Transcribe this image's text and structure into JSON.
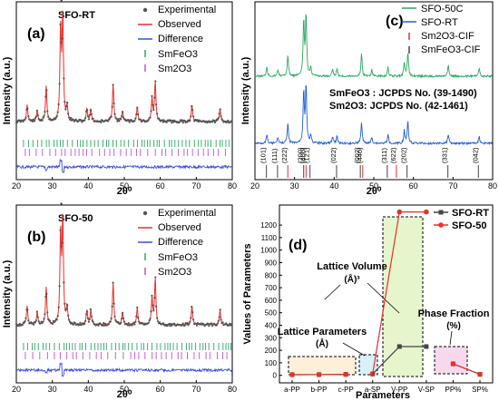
{
  "chart_data": [
    {
      "panel": "(a)",
      "type": "scatter",
      "sample": "SFO-RT",
      "xlabel": "2θ⁰",
      "ylabel": "Intensity (a.u.)",
      "xlim": [
        20,
        80
      ],
      "xticks": [
        20,
        30,
        40,
        50,
        60,
        70,
        80
      ],
      "legend": [
        "Experimental",
        "Observed",
        "Difference",
        "SmFeO3",
        "Sm2O3"
      ],
      "legend_placement": "top-right",
      "peaks": [
        {
          "x": 23.0,
          "h": 0.16
        },
        {
          "x": 25.8,
          "h": 0.1
        },
        {
          "x": 28.3,
          "h": 0.34
        },
        {
          "x": 32.3,
          "h": 0.88
        },
        {
          "x": 32.9,
          "h": 1.0
        },
        {
          "x": 34.1,
          "h": 0.14
        },
        {
          "x": 39.6,
          "h": 0.12
        },
        {
          "x": 40.7,
          "h": 0.12
        },
        {
          "x": 46.9,
          "h": 0.36
        },
        {
          "x": 49.5,
          "h": 0.1
        },
        {
          "x": 53.6,
          "h": 0.14
        },
        {
          "x": 57.7,
          "h": 0.22
        },
        {
          "x": 58.6,
          "h": 0.38
        },
        {
          "x": 68.8,
          "h": 0.16
        },
        {
          "x": 76.6,
          "h": 0.12
        }
      ]
    },
    {
      "panel": "(b)",
      "type": "scatter",
      "sample": "SFO-50",
      "xlabel": "2θ⁰",
      "ylabel": "Intensity (a.u.)",
      "xlim": [
        20,
        80
      ],
      "xticks": [
        20,
        30,
        40,
        50,
        60,
        70,
        80
      ],
      "legend": [
        "Experimental",
        "Observed",
        "Difference",
        "SmFeO3",
        "Sm2O3"
      ],
      "legend_placement": "top-right",
      "peaks": [
        {
          "x": 23.0,
          "h": 0.18
        },
        {
          "x": 25.8,
          "h": 0.12
        },
        {
          "x": 28.3,
          "h": 0.36
        },
        {
          "x": 32.3,
          "h": 0.86
        },
        {
          "x": 32.9,
          "h": 1.0
        },
        {
          "x": 34.1,
          "h": 0.16
        },
        {
          "x": 39.6,
          "h": 0.14
        },
        {
          "x": 40.7,
          "h": 0.14
        },
        {
          "x": 46.9,
          "h": 0.4
        },
        {
          "x": 49.5,
          "h": 0.12
        },
        {
          "x": 53.6,
          "h": 0.16
        },
        {
          "x": 57.7,
          "h": 0.26
        },
        {
          "x": 58.6,
          "h": 0.44
        },
        {
          "x": 68.8,
          "h": 0.18
        },
        {
          "x": 76.6,
          "h": 0.14
        }
      ]
    },
    {
      "panel": "(c)",
      "type": "line",
      "xlabel": "2θ⁰",
      "ylabel": "Intensity (a.u.)",
      "xlim": [
        20,
        80
      ],
      "xticks": [
        20,
        30,
        40,
        50,
        60,
        70,
        80
      ],
      "legend": [
        "SFO-50C",
        "SFO-RT",
        "Sm2O3-CIF",
        "SmFeO3-CIF"
      ],
      "legend_placement": "top-right",
      "annotation_lines": [
        "SmFeO3 : JCPDS No. (39-1490)",
        "Sm2O3: JCPDS No. (42-1461)"
      ],
      "series": [
        {
          "name": "SFO-50C",
          "color": "#2ca860"
        },
        {
          "name": "SFO-RT",
          "color": "#1f5fd6"
        }
      ],
      "cif_lines": [
        {
          "label": "(101)",
          "x": 22.9,
          "phase": "SmFeO3"
        },
        {
          "label": "(111)",
          "x": 25.7,
          "phase": "SmFeO3"
        },
        {
          "label": "(222)",
          "x": 28.3,
          "phase": "Sm2O3"
        },
        {
          "label": "(200)",
          "x": 32.3,
          "phase": "SmFeO3"
        },
        {
          "label": "(400)",
          "x": 32.9,
          "phase": "Sm2O3"
        },
        {
          "label": "(121)",
          "x": 33.9,
          "phase": "SmFeO3"
        },
        {
          "label": "(022)",
          "x": 40.6,
          "phase": "SmFeO3"
        },
        {
          "label": "(002)",
          "x": 46.6,
          "phase": "SmFeO3"
        },
        {
          "label": "(440)",
          "x": 47.2,
          "phase": "Sm2O3"
        },
        {
          "label": "(311)",
          "x": 53.4,
          "phase": "SmFeO3"
        },
        {
          "label": "(622)",
          "x": 55.7,
          "phase": "Sm2O3"
        },
        {
          "label": "(202)",
          "x": 58.4,
          "phase": "SmFeO3"
        },
        {
          "label": "(331)",
          "x": 68.7,
          "phase": "SmFeO3"
        },
        {
          "label": "(042)",
          "x": 76.4,
          "phase": "SmFeO3"
        }
      ]
    },
    {
      "panel": "(d)",
      "type": "line",
      "xlabel": "Parameters",
      "ylabel": "Values of Parameters",
      "categories": [
        "a-PP",
        "b-PP",
        "c-PP",
        "a-SP",
        "V-PP",
        "V-SP",
        "PP%",
        "SP%"
      ],
      "ylim": [
        -60,
        1360
      ],
      "yticks": [
        0,
        100,
        200,
        300,
        400,
        500,
        600,
        700,
        800,
        900,
        1000,
        1100,
        1200
      ],
      "legend_placement": "top-right",
      "series": [
        {
          "name": "SFO-RT",
          "color": "#444444",
          "groups": [
            [
              5.4,
              5.6,
              7.7
            ],
            [
              10.9
            ],
            [
              230,
              230
            ],
            [
              92,
              8
            ]
          ]
        },
        {
          "name": "SFO-50",
          "color": "#e8302a",
          "groups": [
            [
              5.4,
              5.6,
              7.7
            ],
            [
              10.9
            ],
            [
              1305,
              1305
            ],
            [
              92,
              8
            ]
          ]
        }
      ],
      "annotations": [
        {
          "text": "Lattice Volume",
          "sub": "(Å)³"
        },
        {
          "text": "Lattice Parameters",
          "sub": "(Å)"
        },
        {
          "text": "Phase Fraction",
          "sub": "(%)"
        }
      ]
    }
  ]
}
